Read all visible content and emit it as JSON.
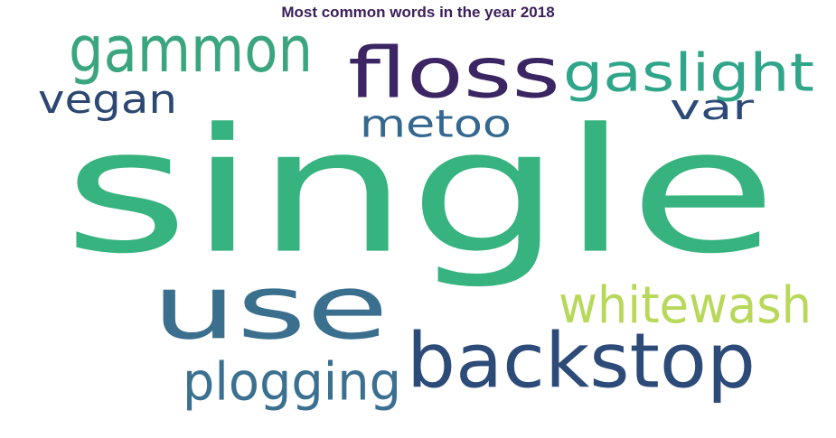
{
  "title": "Most common words in the year 2018",
  "words": [
    {
      "text": "single",
      "color": "#36b37e"
    },
    {
      "text": "use",
      "color": "#3b6f8e"
    },
    {
      "text": "backstop",
      "color": "#2d4b78"
    },
    {
      "text": "floss",
      "color": "#3b2563"
    },
    {
      "text": "gammon",
      "color": "#3aa57f"
    },
    {
      "text": "gaslight",
      "color": "#2fa58a"
    },
    {
      "text": "whitewash",
      "color": "#b8d85a"
    },
    {
      "text": "plogging",
      "color": "#3b7091"
    },
    {
      "text": "metoo",
      "color": "#35688f"
    },
    {
      "text": "vegan",
      "color": "#2c4872"
    },
    {
      "text": "var",
      "color": "#2c4a77"
    }
  ]
}
